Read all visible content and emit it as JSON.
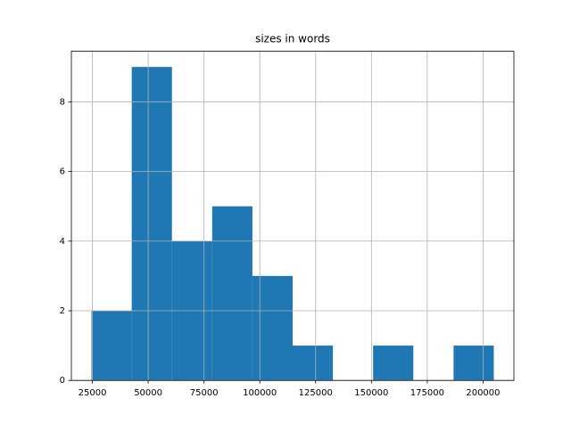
{
  "chart_data": {
    "type": "histogram",
    "title": "sizes in words",
    "bins": [
      24600,
      42620,
      60640,
      78660,
      96680,
      114700,
      132720,
      150740,
      168760,
      186780,
      204800
    ],
    "counts": [
      2,
      9,
      4,
      5,
      3,
      1,
      0,
      1,
      0,
      1
    ],
    "color": "#1f77b4",
    "xlim": [
      15590,
      213810
    ],
    "xticks": [
      25000,
      50000,
      75000,
      100000,
      125000,
      150000,
      175000,
      200000
    ],
    "ylim": [
      0,
      9.45
    ],
    "yticks": [
      0,
      2,
      4,
      6,
      8
    ],
    "grid": true
  }
}
